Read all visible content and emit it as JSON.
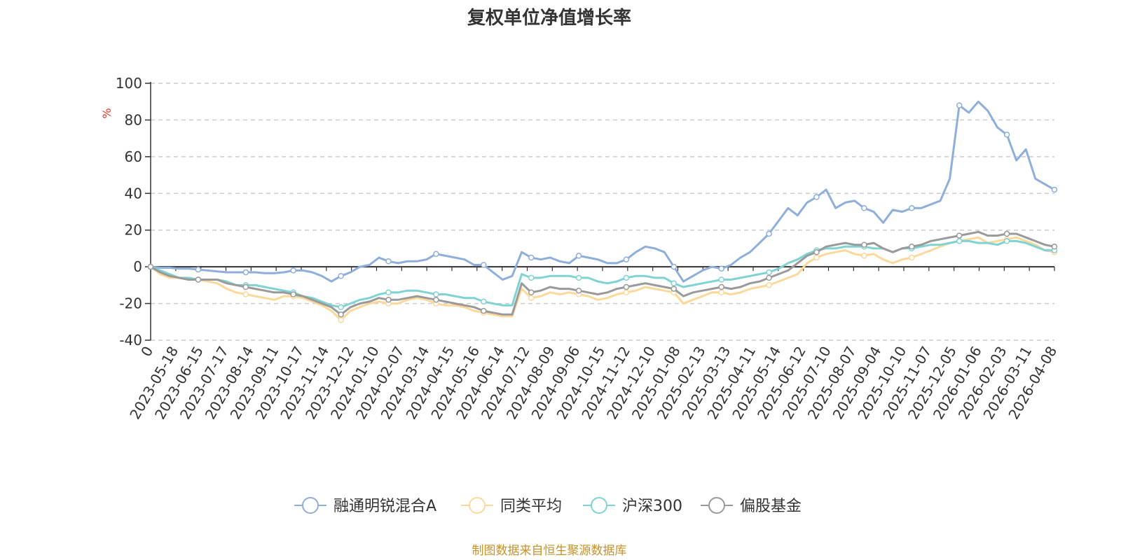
{
  "chart_data": {
    "type": "line",
    "title": "复权单位净值增长率",
    "ylabel": "%",
    "ylim": [
      -40,
      100
    ],
    "yticks": [
      100,
      80,
      60,
      40,
      20,
      0,
      -20,
      -40
    ],
    "x_tick_labels": [
      "0",
      "2023-05-18",
      "2023-06-15",
      "2023-07-17",
      "2023-08-14",
      "2023-09-11",
      "2023-10-17",
      "2023-11-14",
      "2023-12-12",
      "2024-01-10",
      "2024-02-07",
      "2024-03-14",
      "2024-04-15",
      "2024-05-16",
      "2024-06-14",
      "2024-07-12",
      "2024-08-09",
      "2024-09-06",
      "2024-10-15",
      "2024-11-12",
      "2024-12-10",
      "2025-01-08",
      "2025-02-13",
      "2025-03-13",
      "2025-04-11",
      "2025-05-14",
      "2025-06-12",
      "2025-07-10",
      "2025-08-07",
      "2025-09-04",
      "2025-10-10",
      "2025-11-07",
      "2025-12-05",
      "2026-01-06",
      "2026-02-03",
      "2026-03-11",
      "2026-04-08"
    ],
    "grid": true,
    "legend_position": "bottom",
    "series": [
      {
        "name": "融通明锐混合A",
        "color": "#8eaedc",
        "values": [
          0,
          -0.5,
          -0.5,
          -1,
          -1,
          -1.5,
          -2,
          -2.5,
          -3,
          -3,
          -3,
          -3,
          -3.5,
          -3.5,
          -3,
          -2,
          -2,
          -3,
          -5,
          -8,
          -5,
          -3,
          0,
          1,
          5,
          3,
          2,
          3,
          3,
          4,
          7,
          6,
          5,
          4,
          1,
          1,
          -3,
          -7,
          -5,
          8,
          5,
          4,
          5,
          3,
          2,
          6,
          5,
          4,
          2,
          2,
          4,
          8,
          11,
          10,
          8,
          0,
          -8,
          -5,
          -2,
          0,
          -1,
          1,
          5,
          8,
          13,
          18,
          25,
          32,
          28,
          35,
          38,
          42,
          32,
          35,
          36,
          32,
          30,
          24,
          31,
          30,
          32,
          32,
          34,
          36,
          48,
          88,
          84,
          90,
          85,
          76,
          72,
          58,
          64,
          48,
          45,
          42
        ]
      },
      {
        "name": "同类平均",
        "color": "#fcd89a",
        "values": [
          0,
          -4,
          -6,
          -6,
          -7,
          -7,
          -8,
          -9,
          -12,
          -14,
          -15,
          -16,
          -17,
          -18,
          -16,
          -16,
          -17,
          -19,
          -21,
          -24,
          -29,
          -24,
          -22,
          -20,
          -19,
          -20,
          -20,
          -18,
          -17,
          -18,
          -20,
          -21,
          -21,
          -22,
          -24,
          -25,
          -26,
          -27,
          -27,
          -12,
          -17,
          -16,
          -14,
          -15,
          -14,
          -15,
          -16,
          -18,
          -17,
          -15,
          -14,
          -13,
          -11,
          -12,
          -13,
          -14,
          -20,
          -18,
          -16,
          -14,
          -14,
          -15,
          -14,
          -12,
          -11,
          -10,
          -8,
          -6,
          -4,
          2,
          5,
          7,
          8,
          9,
          7,
          6,
          7,
          4,
          2,
          4,
          5,
          7,
          9,
          11,
          13,
          14,
          15,
          16,
          13,
          14,
          15,
          16,
          14,
          12,
          9,
          8
        ]
      },
      {
        "name": "沪深300",
        "color": "#7fd3d3",
        "values": [
          0,
          -2,
          -4,
          -6,
          -6,
          -7,
          -7,
          -7,
          -8,
          -10,
          -10,
          -10,
          -11,
          -12,
          -13,
          -14,
          -16,
          -17,
          -19,
          -21,
          -22,
          -20,
          -18,
          -17,
          -15,
          -14,
          -14,
          -13,
          -13,
          -14,
          -15,
          -15,
          -16,
          -17,
          -17,
          -19,
          -20,
          -21,
          -21,
          -4,
          -6,
          -6,
          -5,
          -5,
          -5,
          -6,
          -6,
          -8,
          -9,
          -8,
          -6,
          -5,
          -5,
          -6,
          -6,
          -9,
          -11,
          -10,
          -9,
          -8,
          -7,
          -7,
          -6,
          -5,
          -4,
          -3,
          -1,
          2,
          4,
          7,
          9,
          10,
          10,
          11,
          11,
          11,
          10,
          10,
          8,
          10,
          10,
          11,
          12,
          12,
          13,
          14,
          14,
          13,
          13,
          12,
          14,
          14,
          13,
          11,
          9,
          9
        ]
      },
      {
        "name": "偏股基金",
        "color": "#9a9a9a",
        "values": [
          0,
          -3,
          -5,
          -6,
          -7,
          -7,
          -7,
          -7,
          -9,
          -10,
          -11,
          -12,
          -13,
          -14,
          -14,
          -15,
          -16,
          -18,
          -20,
          -22,
          -26,
          -22,
          -20,
          -19,
          -17,
          -18,
          -18,
          -17,
          -16,
          -17,
          -18,
          -19,
          -20,
          -21,
          -22,
          -24,
          -25,
          -26,
          -26,
          -9,
          -14,
          -13,
          -11,
          -12,
          -12,
          -13,
          -14,
          -15,
          -14,
          -12,
          -11,
          -10,
          -9,
          -10,
          -11,
          -12,
          -16,
          -14,
          -13,
          -12,
          -11,
          -12,
          -11,
          -9,
          -8,
          -6,
          -4,
          -2,
          2,
          6,
          8,
          11,
          12,
          13,
          12,
          12,
          13,
          10,
          8,
          10,
          11,
          12,
          14,
          15,
          16,
          17,
          18,
          19,
          17,
          17,
          18,
          18,
          16,
          14,
          12,
          11
        ]
      }
    ]
  },
  "source": "制图数据来自恒生聚源数据库"
}
